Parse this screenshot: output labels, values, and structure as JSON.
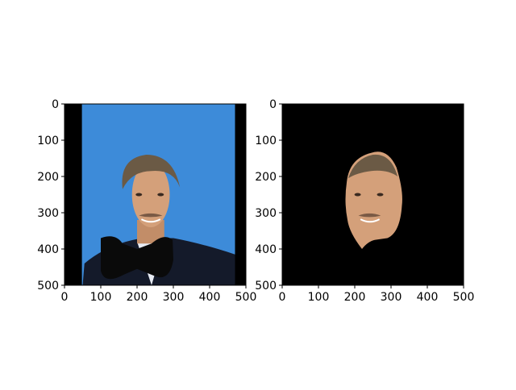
{
  "chart_data": [
    {
      "type": "image",
      "xlim": [
        0,
        500
      ],
      "ylim": [
        500,
        0
      ],
      "xticks": [
        0,
        100,
        200,
        300,
        400,
        500
      ],
      "yticks": [
        0,
        100,
        200,
        300,
        400,
        500
      ],
      "xtick_labels": [
        "0",
        "100",
        "200",
        "300",
        "400",
        "500"
      ],
      "ytick_labels": [
        "0",
        "100",
        "200",
        "300",
        "400",
        "500"
      ],
      "content": "portrait-with-bowtie-mask",
      "colors": {
        "background": "#3d8bd9",
        "border": "#000000",
        "suit": "#141a2a",
        "skin": "#d4a07a",
        "hair": "#6b5a45",
        "mask": "#0a0a0a"
      }
    },
    {
      "type": "image",
      "xlim": [
        0,
        500
      ],
      "ylim": [
        500,
        0
      ],
      "xticks": [
        0,
        100,
        200,
        300,
        400,
        500
      ],
      "yticks": [
        0,
        100,
        200,
        300,
        400,
        500
      ],
      "xtick_labels": [
        "0",
        "100",
        "200",
        "300",
        "400",
        "500"
      ],
      "ytick_labels": [
        "0",
        "100",
        "200",
        "300",
        "400",
        "500"
      ],
      "content": "segmented-face-on-black",
      "colors": {
        "background": "#000000",
        "skin": "#d4a07a",
        "hair": "#6b5a45"
      }
    }
  ]
}
